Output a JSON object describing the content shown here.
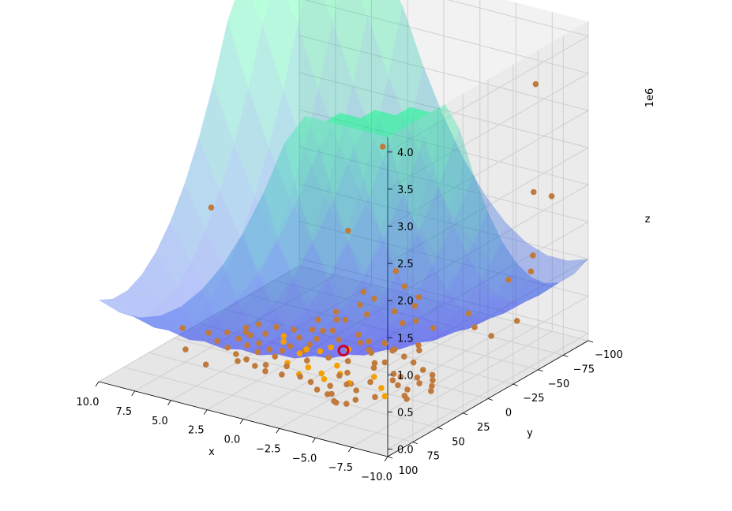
{
  "chart_data": {
    "type": "scatter",
    "surface": {
      "type": "surface",
      "colormap": "winter_r",
      "colors": {
        "low": "#0000ff",
        "high": "#00ff80"
      },
      "alpha": 0.28
    },
    "axes": {
      "x": {
        "label": "x",
        "range": [
          -10,
          10
        ],
        "ticks": [
          10.0,
          7.5,
          5.0,
          2.5,
          0.0,
          -2.5,
          -5.0,
          -7.5,
          -10.0
        ],
        "tick_labels": [
          "10.0",
          "7.5",
          "5.0",
          "2.5",
          "0.0",
          "−2.5",
          "−5.0",
          "−7.5",
          "−10.0"
        ]
      },
      "y": {
        "label": "y",
        "range": [
          -100,
          100
        ],
        "ticks": [
          -100,
          -75,
          -50,
          -25,
          0,
          25,
          50,
          75,
          100
        ],
        "tick_labels": [
          "−100",
          "−75",
          "−50",
          "−25",
          "0",
          "25",
          "50",
          "75",
          "100"
        ]
      },
      "z": {
        "label": "z",
        "range": [
          -0.1,
          4.2
        ],
        "ticks": [
          0.0,
          0.5,
          1.0,
          1.5,
          2.0,
          2.5,
          3.0,
          3.5,
          4.0
        ],
        "tick_labels": [
          "0.0",
          "0.5",
          "1.0",
          "1.5",
          "2.0",
          "2.5",
          "3.0",
          "3.5",
          "4.0"
        ],
        "offset_text": "1e6"
      }
    },
    "grid": true,
    "marker_colors": {
      "points": "#f5a000",
      "highlight_stroke": "#cc0033"
    },
    "highlight_point": {
      "x": 0.0,
      "y": 0.0,
      "z": 0.0
    },
    "series": [
      {
        "points": [
          [
            8.7,
            35,
            0.18
          ],
          [
            7.6,
            48,
            0.05
          ],
          [
            5.5,
            58,
            0.03
          ],
          [
            4.2,
            45,
            0.04
          ],
          [
            2.6,
            40,
            0.03
          ],
          [
            1.8,
            30,
            0.02
          ],
          [
            -6.2,
            82,
            0.55
          ],
          [
            1.5,
            18,
            0.1
          ],
          [
            9.5,
            -5,
            1.45
          ],
          [
            3.5,
            -55,
            1.05
          ],
          [
            -0.6,
            -22,
            0.6
          ],
          [
            -1.2,
            -35,
            0.9
          ],
          [
            0.2,
            -42,
            2.45
          ],
          [
            1.3,
            -12,
            0.3
          ],
          [
            0.8,
            -28,
            0.4
          ],
          [
            -0.4,
            -55,
            0.5
          ],
          [
            -1.6,
            -48,
            0.35
          ],
          [
            -3.2,
            -26,
            0.4
          ],
          [
            -2.3,
            -42,
            0.55
          ],
          [
            -4.0,
            -32,
            0.3
          ],
          [
            -9.0,
            -62,
            3.6
          ],
          [
            -8.3,
            -70,
            2.05
          ],
          [
            -9.2,
            -75,
            2.0
          ],
          [
            -8.6,
            -65,
            1.25
          ],
          [
            -8.6,
            -63,
            1.05
          ],
          [
            -7.6,
            -55,
            0.95
          ],
          [
            -6.8,
            -75,
            0.2
          ],
          [
            -5.6,
            -50,
            0.25
          ],
          [
            -4.5,
            -60,
            0.3
          ],
          [
            -6.2,
            -58,
            0.1
          ],
          [
            -1.2,
            -8,
            0.05
          ],
          [
            -2.5,
            5,
            0.04
          ],
          [
            -2.8,
            10,
            0.03
          ],
          [
            -3.5,
            20,
            0.02
          ],
          [
            -4.7,
            30,
            0.01
          ],
          [
            -5.5,
            38,
            0.0
          ],
          [
            -1.5,
            25,
            0.0
          ],
          [
            -0.7,
            32,
            0.02
          ],
          [
            0.5,
            28,
            0.01
          ],
          [
            1.0,
            22,
            0.03
          ],
          [
            2.0,
            15,
            0.02
          ],
          [
            3.0,
            10,
            0.03
          ],
          [
            3.8,
            5,
            0.01
          ],
          [
            2.2,
            -5,
            0.05
          ],
          [
            1.0,
            -10,
            0.06
          ],
          [
            -0.2,
            -14,
            0.05
          ],
          [
            -1.5,
            -6,
            0.04
          ],
          [
            -3.0,
            2,
            0.05
          ],
          [
            -4.3,
            12,
            0.04
          ],
          [
            -5.0,
            15,
            0.06
          ],
          [
            -5.5,
            25,
            0.05
          ],
          [
            -6.5,
            30,
            0.08
          ],
          [
            -7.0,
            40,
            0.1
          ],
          [
            -7.5,
            45,
            0.12
          ],
          [
            -6.0,
            55,
            0.15
          ],
          [
            -5.0,
            60,
            0.1
          ],
          [
            -4.0,
            65,
            0.05
          ],
          [
            -3.0,
            55,
            0.04
          ],
          [
            -2.2,
            45,
            0.03
          ],
          [
            -1.3,
            38,
            0.02
          ],
          [
            0.3,
            40,
            0.02
          ],
          [
            1.5,
            35,
            0.03
          ],
          [
            2.8,
            28,
            0.04
          ],
          [
            3.6,
            22,
            0.05
          ],
          [
            4.6,
            18,
            0.05
          ],
          [
            5.6,
            12,
            0.06
          ],
          [
            6.4,
            5,
            0.07
          ],
          [
            6.0,
            -2,
            0.08
          ],
          [
            5.0,
            -5,
            0.07
          ],
          [
            4.0,
            -8,
            0.06
          ],
          [
            3.0,
            -12,
            0.08
          ],
          [
            2.0,
            -18,
            0.07
          ],
          [
            0.5,
            -22,
            0.06
          ],
          [
            -0.5,
            -18,
            0.05
          ],
          [
            -1.5,
            -20,
            0.06
          ],
          [
            -2.5,
            -15,
            0.07
          ],
          [
            -3.5,
            -10,
            0.06
          ],
          [
            -4.5,
            -5,
            0.07
          ],
          [
            -5.5,
            0,
            0.06
          ],
          [
            -6.5,
            5,
            0.08
          ],
          [
            -7.0,
            12,
            0.09
          ],
          [
            -7.5,
            20,
            0.1
          ],
          [
            -8.0,
            28,
            0.12
          ],
          [
            -6.5,
            18,
            0.07
          ],
          [
            -5.8,
            10,
            0.05
          ],
          [
            -4.8,
            20,
            0.04
          ],
          [
            -3.8,
            28,
            0.03
          ],
          [
            -2.8,
            35,
            0.02
          ],
          [
            -1.8,
            30,
            0.03
          ],
          [
            -0.8,
            18,
            0.02
          ],
          [
            0.2,
            12,
            0.03
          ],
          [
            1.2,
            6,
            0.02
          ],
          [
            2.2,
            2,
            0.03
          ],
          [
            3.2,
            -2,
            0.04
          ],
          [
            4.2,
            -1,
            0.02
          ],
          [
            5.2,
            3,
            0.03
          ],
          [
            6.2,
            8,
            0.04
          ],
          [
            7.0,
            15,
            0.05
          ],
          [
            7.8,
            22,
            0.06
          ],
          [
            6.8,
            28,
            0.05
          ],
          [
            5.8,
            32,
            0.04
          ],
          [
            4.8,
            38,
            0.05
          ],
          [
            3.8,
            42,
            0.06
          ],
          [
            2.8,
            48,
            0.07
          ],
          [
            1.8,
            52,
            0.08
          ],
          [
            0.8,
            50,
            0.07
          ],
          [
            -0.2,
            46,
            0.06
          ],
          [
            -1.2,
            50,
            0.07
          ],
          [
            -2.2,
            58,
            0.08
          ],
          [
            -3.2,
            62,
            0.1
          ],
          [
            -4.2,
            70,
            0.12
          ],
          [
            -5.2,
            72,
            0.15
          ],
          [
            -4.0,
            45,
            0.06
          ],
          [
            -3.0,
            40,
            0.05
          ],
          [
            -2.0,
            25,
            0.04
          ],
          [
            -1.0,
            10,
            0.03
          ],
          [
            0.0,
            -5,
            0.02
          ],
          [
            1.0,
            -2,
            0.02
          ],
          [
            2.0,
            8,
            0.02
          ],
          [
            3.0,
            18,
            0.03
          ],
          [
            4.0,
            28,
            0.04
          ],
          [
            5.0,
            24,
            0.05
          ],
          [
            6.0,
            18,
            0.04
          ],
          [
            0.6,
            -32,
            0.25
          ],
          [
            -0.9,
            -38,
            0.32
          ],
          [
            1.6,
            -25,
            0.18
          ],
          [
            -2.0,
            -30,
            0.28
          ],
          [
            2.6,
            -30,
            0.2
          ],
          [
            -3.8,
            -20,
            0.15
          ],
          [
            3.3,
            -22,
            0.12
          ],
          [
            -2.7,
            -10,
            0.1
          ],
          [
            1.4,
            -40,
            0.45
          ],
          [
            -1.8,
            -15,
            0.12
          ],
          [
            2.4,
            -14,
            0.08
          ],
          [
            -4.2,
            -15,
            0.14
          ]
        ]
      }
    ]
  }
}
